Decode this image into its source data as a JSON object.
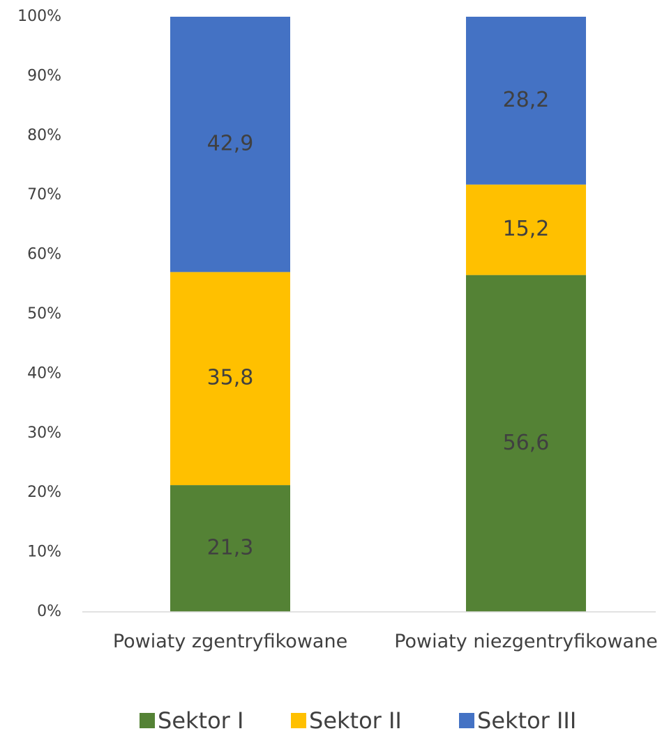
{
  "chart_data": {
    "type": "stacked_bar",
    "categories": [
      "Powiaty zgentryfikowane",
      "Powiaty niezgentryfikowane"
    ],
    "series": [
      {
        "name": "Sektor I",
        "color": "#548235",
        "values": [
          21.3,
          56.6
        ],
        "value_labels": [
          "21,3",
          "56,6"
        ]
      },
      {
        "name": "Sektor II",
        "color": "#ffc000",
        "values": [
          35.8,
          15.2
        ],
        "value_labels": [
          "35,8",
          "15,2"
        ]
      },
      {
        "name": "Sektor III",
        "color": "#4472c4",
        "values": [
          42.9,
          28.2
        ],
        "value_labels": [
          "42,9",
          "28,2"
        ]
      }
    ],
    "ylim": [
      0,
      100
    ],
    "yticks": [
      {
        "value": 0,
        "label": "0%"
      },
      {
        "value": 10,
        "label": "10%"
      },
      {
        "value": 20,
        "label": "20%"
      },
      {
        "value": 30,
        "label": "30%"
      },
      {
        "value": 40,
        "label": "40%"
      },
      {
        "value": 50,
        "label": "50%"
      },
      {
        "value": 60,
        "label": "60%"
      },
      {
        "value": 70,
        "label": "70%"
      },
      {
        "value": 80,
        "label": "80%"
      },
      {
        "value": 90,
        "label": "90%"
      },
      {
        "value": 100,
        "label": "100%"
      }
    ],
    "grid": false,
    "legend": "bottom"
  }
}
